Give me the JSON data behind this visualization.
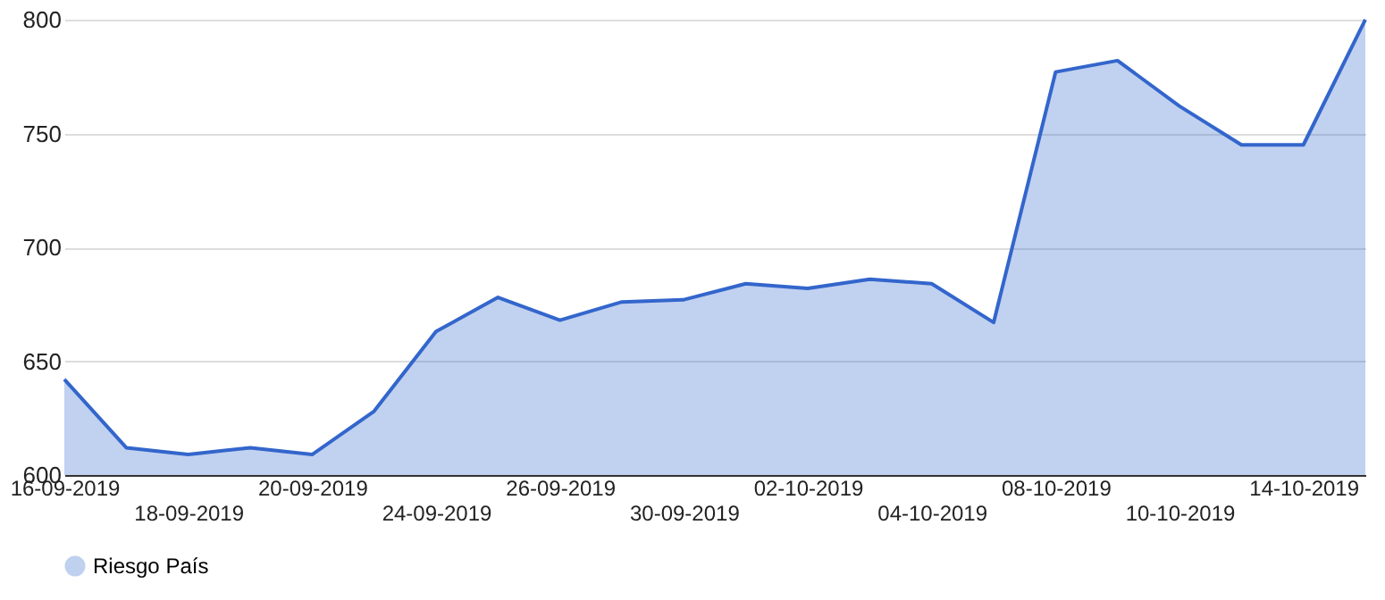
{
  "chart_data": {
    "type": "area",
    "categories": [
      "16-09-2019",
      null,
      "18-09-2019",
      null,
      "20-09-2019",
      null,
      "24-09-2019",
      null,
      "26-09-2019",
      null,
      "30-09-2019",
      null,
      "02-10-2019",
      null,
      "04-10-2019",
      null,
      "08-10-2019",
      null,
      "10-10-2019",
      null,
      "14-10-2019",
      null
    ],
    "series": [
      {
        "name": "Riesgo País",
        "color": "#3366cc",
        "values": [
          642,
          612,
          609,
          612,
          609,
          628,
          663,
          678,
          668,
          676,
          677,
          684,
          682,
          686,
          684,
          667,
          777,
          782,
          762,
          745,
          745,
          800
        ]
      }
    ],
    "ylim": [
      600,
      800
    ],
    "yticks": [
      600,
      650,
      700,
      750,
      800
    ],
    "grid": "y",
    "legend": "bottom",
    "marker": "none",
    "line_style": "solid"
  }
}
